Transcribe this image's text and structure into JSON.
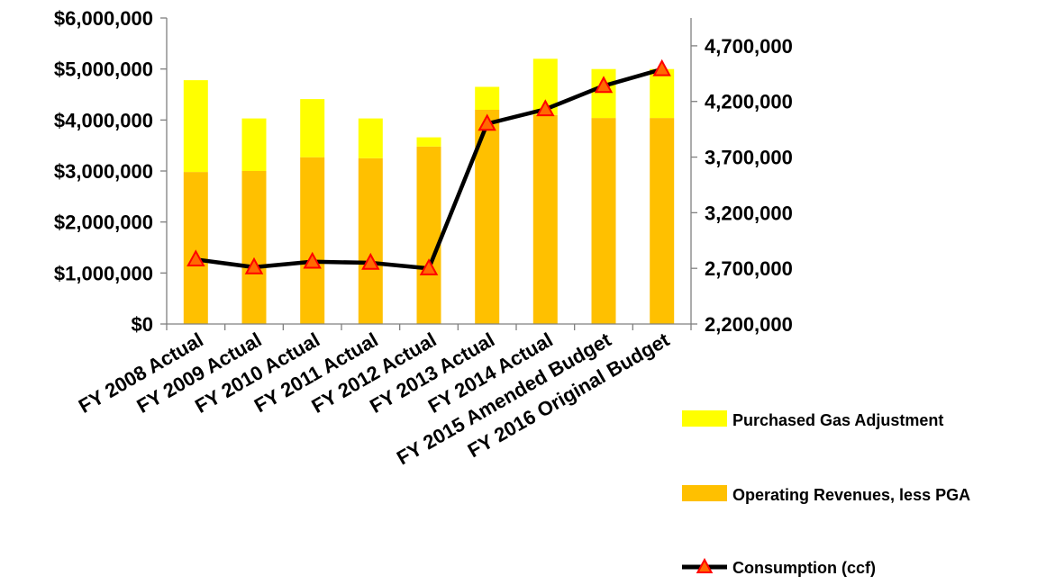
{
  "chart_data": {
    "type": "bar",
    "stacked": true,
    "categories": [
      "FY 2008 Actual",
      "FY 2009 Actual",
      "FY 2010 Actual",
      "FY 2011 Actual",
      "FY 2012 Actual",
      "FY 2013 Actual",
      "FY 2014 Actual",
      "FY 2015 Amended Budget",
      "FY 2016 Original Budget"
    ],
    "series": [
      {
        "name": "Operating Revenues, less PGA",
        "axis": "left",
        "color": "#FFC000",
        "values": [
          2980000,
          3000000,
          3270000,
          3250000,
          3480000,
          4200000,
          4100000,
          4040000,
          4040000
        ]
      },
      {
        "name": "Purchased Gas Adjustment",
        "axis": "left",
        "color": "#FFFF00",
        "values": [
          1800000,
          1030000,
          1140000,
          780000,
          180000,
          450000,
          1100000,
          960000,
          960000
        ]
      },
      {
        "name": "Consumption (ccf)",
        "axis": "right",
        "type": "line",
        "color": "#000000",
        "marker_color": "#FF0000",
        "marker_fill": "#FF6A00",
        "values": [
          2780000,
          2710000,
          2760000,
          2750000,
          2700000,
          4000000,
          4130000,
          4340000,
          4490000
        ]
      }
    ],
    "y_left": {
      "ylim": [
        0,
        6000000
      ],
      "ticks": [
        0,
        1000000,
        2000000,
        3000000,
        4000000,
        5000000,
        6000000
      ],
      "tick_labels": [
        "$0",
        "$1,000,000",
        "$2,000,000",
        "$3,000,000",
        "$4,000,000",
        "$5,000,000",
        "$6,000,000"
      ]
    },
    "y_right": {
      "ylim": [
        2200000,
        4950000
      ],
      "ticks": [
        2200000,
        2700000,
        3200000,
        3700000,
        4200000,
        4700000
      ],
      "tick_labels": [
        "2,200,000",
        "2,700,000",
        "3,200,000",
        "3,700,000",
        "4,200,000",
        "4,700,000"
      ]
    },
    "legend": {
      "position": "bottom-right",
      "entries": [
        {
          "label": "Purchased Gas Adjustment",
          "kind": "bar",
          "series": 1
        },
        {
          "label": "Operating Revenues, less PGA",
          "kind": "bar",
          "series": 0
        },
        {
          "label": "Consumption (ccf)",
          "kind": "line",
          "series": 2
        }
      ]
    },
    "grid": false
  }
}
